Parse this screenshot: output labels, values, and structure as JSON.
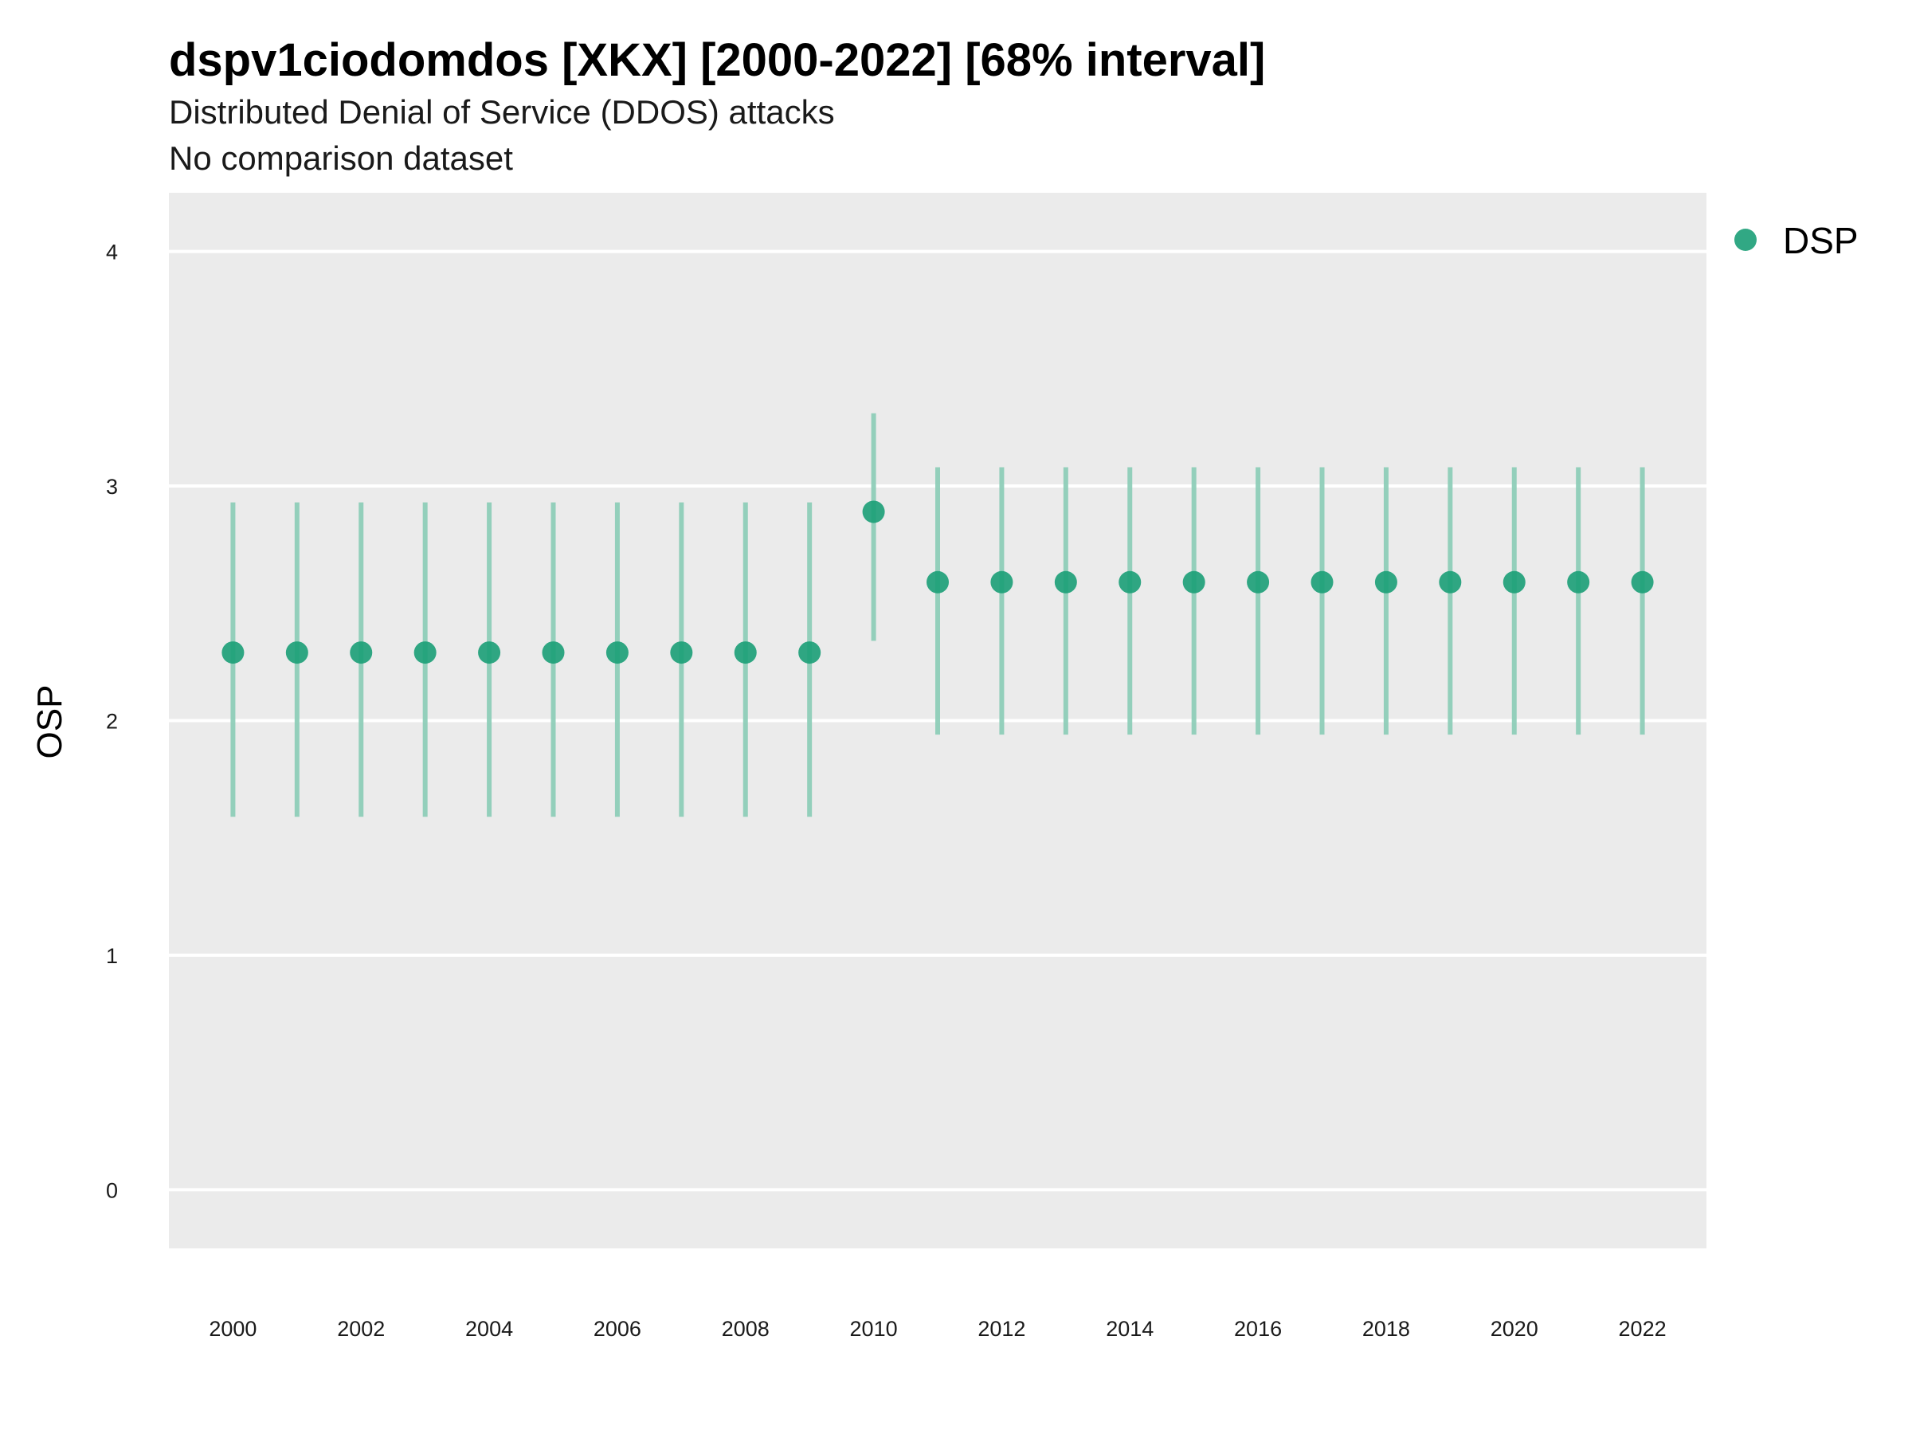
{
  "chart_data": {
    "type": "scatter",
    "title": "dspv1ciodomdos [XKX] [2000-2022] [68% interval]",
    "subtitle": "Distributed Denial of Service (DDOS) attacks",
    "caption_line": "No comparison dataset",
    "xlabel": "",
    "ylabel": "OSP",
    "xlim": [
      1999,
      2023
    ],
    "ylim": [
      -0.25,
      4.25
    ],
    "x_ticks": [
      2000,
      2002,
      2004,
      2006,
      2008,
      2010,
      2012,
      2014,
      2016,
      2018,
      2020,
      2022
    ],
    "y_ticks": [
      0,
      1,
      2,
      3,
      4
    ],
    "grid": "horizontal",
    "legend_position": "top-right",
    "colors": {
      "panel_bg": "#ebebeb",
      "grid": "#ffffff",
      "point": "#1b9e77",
      "interval": "#8ecdb8"
    },
    "series": [
      {
        "name": "DSP",
        "x": [
          2000,
          2001,
          2002,
          2003,
          2004,
          2005,
          2006,
          2007,
          2008,
          2009,
          2010,
          2011,
          2012,
          2013,
          2014,
          2015,
          2016,
          2017,
          2018,
          2019,
          2020,
          2021,
          2022
        ],
        "y": [
          2.29,
          2.29,
          2.29,
          2.29,
          2.29,
          2.29,
          2.29,
          2.29,
          2.29,
          2.29,
          2.89,
          2.59,
          2.59,
          2.59,
          2.59,
          2.59,
          2.59,
          2.59,
          2.59,
          2.59,
          2.59,
          2.59,
          2.59
        ],
        "lower": [
          1.59,
          1.59,
          1.59,
          1.59,
          1.59,
          1.59,
          1.59,
          1.59,
          1.59,
          1.59,
          2.34,
          1.94,
          1.94,
          1.94,
          1.94,
          1.94,
          1.94,
          1.94,
          1.94,
          1.94,
          1.94,
          1.94,
          1.94
        ],
        "upper": [
          2.93,
          2.93,
          2.93,
          2.93,
          2.93,
          2.93,
          2.93,
          2.93,
          2.93,
          2.93,
          3.31,
          3.08,
          3.08,
          3.08,
          3.08,
          3.08,
          3.08,
          3.08,
          3.08,
          3.08,
          3.08,
          3.08,
          3.08
        ]
      }
    ]
  }
}
